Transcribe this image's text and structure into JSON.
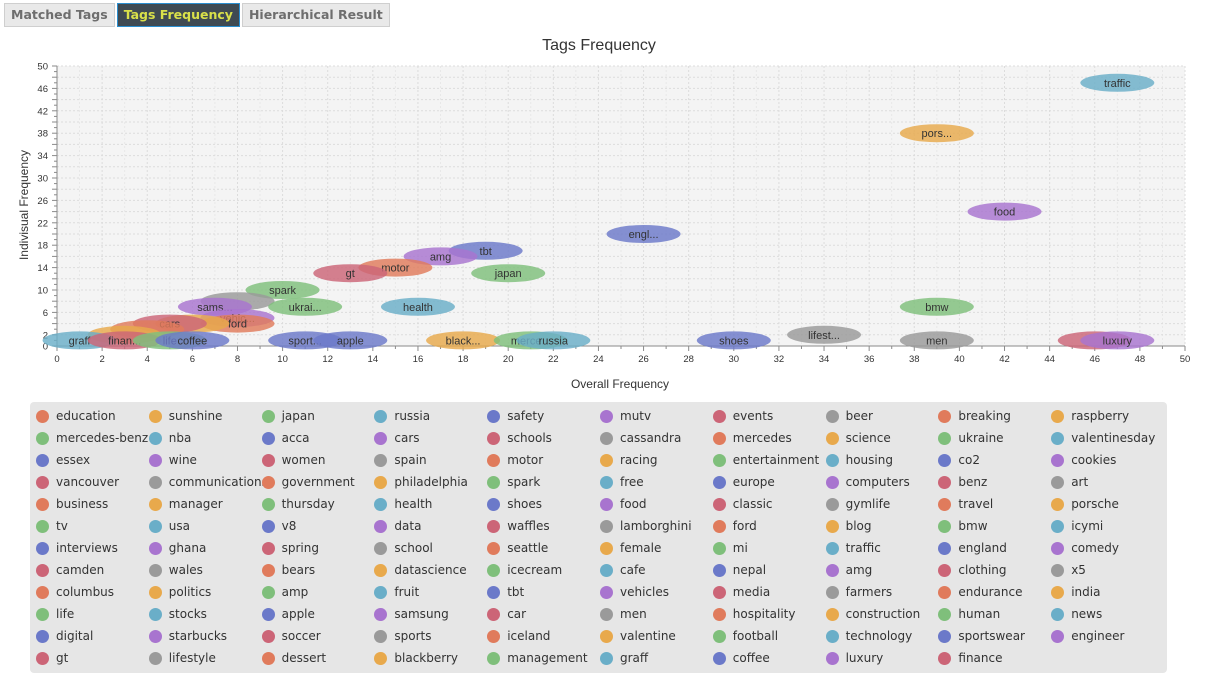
{
  "tabs": [
    {
      "label": "Matched Tags",
      "active": false
    },
    {
      "label": "Tags Frequency",
      "active": true
    },
    {
      "label": "Hierarchical Result",
      "active": false
    }
  ],
  "palette": [
    "#e07b5c",
    "#e8a94c",
    "#7fbf7b",
    "#6aaec8",
    "#6b79c9",
    "#a874cf",
    "#cc6577",
    "#9a9a9a"
  ],
  "chart_data": {
    "type": "scatter",
    "title": "Tags Frequency",
    "xlabel": "Overall Frequency",
    "ylabel": "Indivisual Frequency",
    "xlim": [
      0,
      50
    ],
    "ylim": [
      0,
      50
    ],
    "x_ticks": [
      0,
      2,
      4,
      6,
      8,
      10,
      12,
      14,
      16,
      18,
      20,
      22,
      24,
      26,
      28,
      30,
      32,
      34,
      36,
      38,
      40,
      42,
      44,
      46,
      48,
      50
    ],
    "y_ticks": [
      0,
      2,
      6,
      10,
      14,
      18,
      22,
      26,
      30,
      34,
      38,
      42,
      46,
      50
    ],
    "grid": true,
    "points": [
      {
        "label": "traffic",
        "x": 47,
        "y": 47,
        "c": 3
      },
      {
        "label": "pors...",
        "x": 39,
        "y": 38,
        "c": 1
      },
      {
        "label": "food",
        "x": 42,
        "y": 24,
        "c": 5
      },
      {
        "label": "engl...",
        "x": 26,
        "y": 20,
        "c": 4
      },
      {
        "label": "tbt",
        "x": 19,
        "y": 17,
        "c": 4
      },
      {
        "label": "amg",
        "x": 17,
        "y": 16,
        "c": 5
      },
      {
        "label": "motor",
        "x": 15,
        "y": 14,
        "c": 0
      },
      {
        "label": "gt",
        "x": 13,
        "y": 13,
        "c": 6
      },
      {
        "label": "japan",
        "x": 20,
        "y": 13,
        "c": 2
      },
      {
        "label": "spark",
        "x": 10,
        "y": 10,
        "c": 2
      },
      {
        "label": "",
        "x": 8,
        "y": 8,
        "c": 7
      },
      {
        "label": "ukrai...",
        "x": 11,
        "y": 7,
        "c": 2
      },
      {
        "label": "health",
        "x": 16,
        "y": 7,
        "c": 3
      },
      {
        "label": "bmw",
        "x": 39,
        "y": 7,
        "c": 2
      },
      {
        "label": "sams...",
        "x": 7,
        "y": 7,
        "c": 5
      },
      {
        "label": "vehic...",
        "x": 8,
        "y": 5,
        "c": 5
      },
      {
        "label": "ford",
        "x": 8,
        "y": 4,
        "c": 0
      },
      {
        "label": "",
        "x": 6,
        "y": 4,
        "c": 1
      },
      {
        "label": "cars",
        "x": 5,
        "y": 4,
        "c": 6
      },
      {
        "label": "",
        "x": 4,
        "y": 3,
        "c": 0
      },
      {
        "label": "",
        "x": 3,
        "y": 2,
        "c": 1
      },
      {
        "label": "lifest...",
        "x": 34,
        "y": 2,
        "c": 7
      },
      {
        "label": "graff",
        "x": 1,
        "y": 1,
        "c": 3
      },
      {
        "label": "finan...",
        "x": 3,
        "y": 1,
        "c": 6
      },
      {
        "label": "life",
        "x": 5,
        "y": 1,
        "c": 2
      },
      {
        "label": "coffee",
        "x": 6,
        "y": 1,
        "c": 4
      },
      {
        "label": "sport...",
        "x": 11,
        "y": 1,
        "c": 4
      },
      {
        "label": "apple",
        "x": 13,
        "y": 1,
        "c": 4
      },
      {
        "label": "black...",
        "x": 18,
        "y": 1,
        "c": 1
      },
      {
        "label": "merce...",
        "x": 21,
        "y": 1,
        "c": 2
      },
      {
        "label": "russia",
        "x": 22,
        "y": 1,
        "c": 3
      },
      {
        "label": "shoes",
        "x": 30,
        "y": 1,
        "c": 4
      },
      {
        "label": "men",
        "x": 39,
        "y": 1,
        "c": 7
      },
      {
        "label": "",
        "x": 46,
        "y": 1,
        "c": 6
      },
      {
        "label": "luxury",
        "x": 47,
        "y": 1,
        "c": 5
      }
    ]
  },
  "legend": [
    {
      "label": "education",
      "c": 0
    },
    {
      "label": "sunshine",
      "c": 1
    },
    {
      "label": "japan",
      "c": 2
    },
    {
      "label": "russia",
      "c": 3
    },
    {
      "label": "safety",
      "c": 4
    },
    {
      "label": "mutv",
      "c": 5
    },
    {
      "label": "events",
      "c": 6
    },
    {
      "label": "beer",
      "c": 7
    },
    {
      "label": "breaking",
      "c": 0
    },
    {
      "label": "raspberry",
      "c": 1
    },
    {
      "label": "mercedes-benz",
      "c": 2
    },
    {
      "label": "nba",
      "c": 3
    },
    {
      "label": "acca",
      "c": 4
    },
    {
      "label": "cars",
      "c": 5
    },
    {
      "label": "schools",
      "c": 6
    },
    {
      "label": "cassandra",
      "c": 7
    },
    {
      "label": "mercedes",
      "c": 0
    },
    {
      "label": "science",
      "c": 1
    },
    {
      "label": "ukraine",
      "c": 2
    },
    {
      "label": "valentinesday",
      "c": 3
    },
    {
      "label": "essex",
      "c": 4
    },
    {
      "label": "wine",
      "c": 5
    },
    {
      "label": "women",
      "c": 6
    },
    {
      "label": "spain",
      "c": 7
    },
    {
      "label": "motor",
      "c": 0
    },
    {
      "label": "racing",
      "c": 1
    },
    {
      "label": "entertainment",
      "c": 2
    },
    {
      "label": "housing",
      "c": 3
    },
    {
      "label": "co2",
      "c": 4
    },
    {
      "label": "cookies",
      "c": 5
    },
    {
      "label": "vancouver",
      "c": 6
    },
    {
      "label": "communications",
      "c": 7
    },
    {
      "label": "government",
      "c": 0
    },
    {
      "label": "philadelphia",
      "c": 1
    },
    {
      "label": "spark",
      "c": 2
    },
    {
      "label": "free",
      "c": 3
    },
    {
      "label": "europe",
      "c": 4
    },
    {
      "label": "computers",
      "c": 5
    },
    {
      "label": "benz",
      "c": 6
    },
    {
      "label": "art",
      "c": 7
    },
    {
      "label": "business",
      "c": 0
    },
    {
      "label": "manager",
      "c": 1
    },
    {
      "label": "thursday",
      "c": 2
    },
    {
      "label": "health",
      "c": 3
    },
    {
      "label": "shoes",
      "c": 4
    },
    {
      "label": "food",
      "c": 5
    },
    {
      "label": "classic",
      "c": 6
    },
    {
      "label": "gymlife",
      "c": 7
    },
    {
      "label": "travel",
      "c": 0
    },
    {
      "label": "porsche",
      "c": 1
    },
    {
      "label": "tv",
      "c": 2
    },
    {
      "label": "usa",
      "c": 3
    },
    {
      "label": "v8",
      "c": 4
    },
    {
      "label": "data",
      "c": 5
    },
    {
      "label": "waffles",
      "c": 6
    },
    {
      "label": "lamborghini",
      "c": 7
    },
    {
      "label": "ford",
      "c": 0
    },
    {
      "label": "blog",
      "c": 1
    },
    {
      "label": "bmw",
      "c": 2
    },
    {
      "label": "icymi",
      "c": 3
    },
    {
      "label": "interviews",
      "c": 4
    },
    {
      "label": "ghana",
      "c": 5
    },
    {
      "label": "spring",
      "c": 6
    },
    {
      "label": "school",
      "c": 7
    },
    {
      "label": "seattle",
      "c": 0
    },
    {
      "label": "female",
      "c": 1
    },
    {
      "label": "mi",
      "c": 2
    },
    {
      "label": "traffic",
      "c": 3
    },
    {
      "label": "england",
      "c": 4
    },
    {
      "label": "comedy",
      "c": 5
    },
    {
      "label": "camden",
      "c": 6
    },
    {
      "label": "wales",
      "c": 7
    },
    {
      "label": "bears",
      "c": 0
    },
    {
      "label": "datascience",
      "c": 1
    },
    {
      "label": "icecream",
      "c": 2
    },
    {
      "label": "cafe",
      "c": 3
    },
    {
      "label": "nepal",
      "c": 4
    },
    {
      "label": "amg",
      "c": 5
    },
    {
      "label": "clothing",
      "c": 6
    },
    {
      "label": "x5",
      "c": 7
    },
    {
      "label": "columbus",
      "c": 0
    },
    {
      "label": "politics",
      "c": 1
    },
    {
      "label": "amp",
      "c": 2
    },
    {
      "label": "fruit",
      "c": 3
    },
    {
      "label": "tbt",
      "c": 4
    },
    {
      "label": "vehicles",
      "c": 5
    },
    {
      "label": "media",
      "c": 6
    },
    {
      "label": "farmers",
      "c": 7
    },
    {
      "label": "endurance",
      "c": 0
    },
    {
      "label": "india",
      "c": 1
    },
    {
      "label": "life",
      "c": 2
    },
    {
      "label": "stocks",
      "c": 3
    },
    {
      "label": "apple",
      "c": 4
    },
    {
      "label": "samsung",
      "c": 5
    },
    {
      "label": "car",
      "c": 6
    },
    {
      "label": "men",
      "c": 7
    },
    {
      "label": "hospitality",
      "c": 0
    },
    {
      "label": "construction",
      "c": 1
    },
    {
      "label": "human",
      "c": 2
    },
    {
      "label": "news",
      "c": 3
    },
    {
      "label": "digital",
      "c": 4
    },
    {
      "label": "starbucks",
      "c": 5
    },
    {
      "label": "soccer",
      "c": 6
    },
    {
      "label": "sports",
      "c": 7
    },
    {
      "label": "iceland",
      "c": 0
    },
    {
      "label": "valentine",
      "c": 1
    },
    {
      "label": "football",
      "c": 2
    },
    {
      "label": "technology",
      "c": 3
    },
    {
      "label": "sportswear",
      "c": 4
    },
    {
      "label": "engineer",
      "c": 5
    },
    {
      "label": "gt",
      "c": 6
    },
    {
      "label": "lifestyle",
      "c": 7
    },
    {
      "label": "dessert",
      "c": 0
    },
    {
      "label": "blackberry",
      "c": 1
    },
    {
      "label": "management",
      "c": 2
    },
    {
      "label": "graff",
      "c": 3
    },
    {
      "label": "coffee",
      "c": 4
    },
    {
      "label": "luxury",
      "c": 5
    },
    {
      "label": "finance",
      "c": 6
    }
  ]
}
